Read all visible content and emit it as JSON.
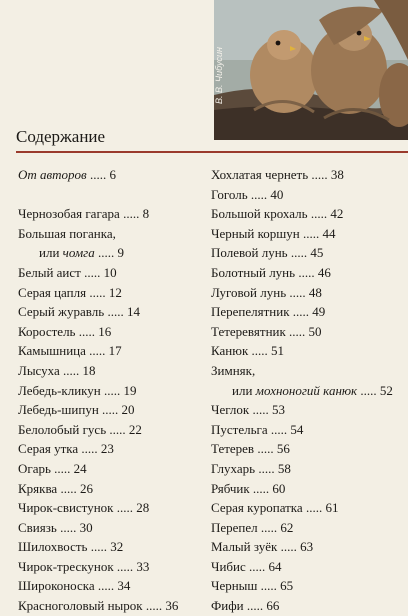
{
  "photo": {
    "credit": "В. В. Чибусин",
    "subject": "kestrel-chicks"
  },
  "page": {
    "title": "Содержание",
    "rule_color": "#9a3a2c"
  },
  "toc_left": [
    {
      "text": "От авторов",
      "dots": " .....",
      "page": "6",
      "italic": true
    },
    {
      "text": "Чернозобая гагара",
      "dots": " .....",
      "page": "8"
    },
    {
      "text": "Большая поганка,",
      "dots": "",
      "page": ""
    },
    {
      "text": "или ",
      "italic_part": "чомга",
      "dots": " .....",
      "page": "9",
      "indent": true
    },
    {
      "text": "Белый аист",
      "dots": " .....",
      "page": "10"
    },
    {
      "text": "Серая цапля",
      "dots": " .....",
      "page": "12"
    },
    {
      "text": "Серый журавль",
      "dots": " .....",
      "page": "14"
    },
    {
      "text": "Коростель",
      "dots": " .....",
      "page": "16"
    },
    {
      "text": "Камышница",
      "dots": " .....",
      "page": "17"
    },
    {
      "text": "Лысуха",
      "dots": " .....",
      "page": "18"
    },
    {
      "text": "Лебедь-кликун",
      "dots": " .....",
      "page": "19"
    },
    {
      "text": "Лебедь-шипун",
      "dots": " .....",
      "page": "20"
    },
    {
      "text": "Белолобый гусь",
      "dots": " .....",
      "page": "22"
    },
    {
      "text": "Серая утка",
      "dots": " .....",
      "page": "23"
    },
    {
      "text": "Огарь",
      "dots": " .....",
      "page": "24"
    },
    {
      "text": "Кряква",
      "dots": " .....",
      "page": "26"
    },
    {
      "text": "Чирок-свистунок",
      "dots": " .....",
      "page": "28"
    },
    {
      "text": "Свиязь",
      "dots": " .....",
      "page": "30"
    },
    {
      "text": "Шилохвость",
      "dots": " .....",
      "page": "32"
    },
    {
      "text": "Чирок-трескунок",
      "dots": " .....",
      "page": "33"
    },
    {
      "text": "Широконоска",
      "dots": " .....",
      "page": "34"
    },
    {
      "text": "Красноголовый нырок",
      "dots": " .....",
      "page": "36"
    }
  ],
  "toc_right": [
    {
      "text": "Хохлатая чернеть",
      "dots": " .....",
      "page": "38"
    },
    {
      "text": "Гоголь",
      "dots": " .....",
      "page": "40"
    },
    {
      "text": "Большой крохаль",
      "dots": " .....",
      "page": "42"
    },
    {
      "text": "Черный коршун",
      "dots": " .....",
      "page": "44"
    },
    {
      "text": "Полевой лунь",
      "dots": " .....",
      "page": "45"
    },
    {
      "text": "Болотный лунь",
      "dots": " .....",
      "page": "46"
    },
    {
      "text": "Луговой лунь",
      "dots": " .....",
      "page": "48"
    },
    {
      "text": "Перепелятник",
      "dots": " .....",
      "page": "49"
    },
    {
      "text": "Тетеревятник",
      "dots": " .....",
      "page": "50"
    },
    {
      "text": "Канюк",
      "dots": " .....",
      "page": "51"
    },
    {
      "text": "Зимняк,",
      "dots": "",
      "page": ""
    },
    {
      "text": "или ",
      "italic_part": "мохноногий канюк",
      "dots": " .....",
      "page": "52",
      "indent": true
    },
    {
      "text": "Чеглок",
      "dots": " .....",
      "page": "53"
    },
    {
      "text": "Пустельга",
      "dots": " .....",
      "page": "54"
    },
    {
      "text": "Тетерев",
      "dots": " .....",
      "page": "56"
    },
    {
      "text": "Глухарь",
      "dots": " .....",
      "page": "58"
    },
    {
      "text": "Рябчик",
      "dots": " .....",
      "page": "60"
    },
    {
      "text": "Серая куропатка",
      "dots": " .....",
      "page": "61"
    },
    {
      "text": "Перепел",
      "dots": " .....",
      "page": "62"
    },
    {
      "text": "Малый зуёк",
      "dots": " .....",
      "page": "63"
    },
    {
      "text": "Чибис",
      "dots": " .....",
      "page": "64"
    },
    {
      "text": "Черныш",
      "dots": " .....",
      "page": "65"
    },
    {
      "text": "Фифи",
      "dots": " .....",
      "page": "66"
    }
  ]
}
